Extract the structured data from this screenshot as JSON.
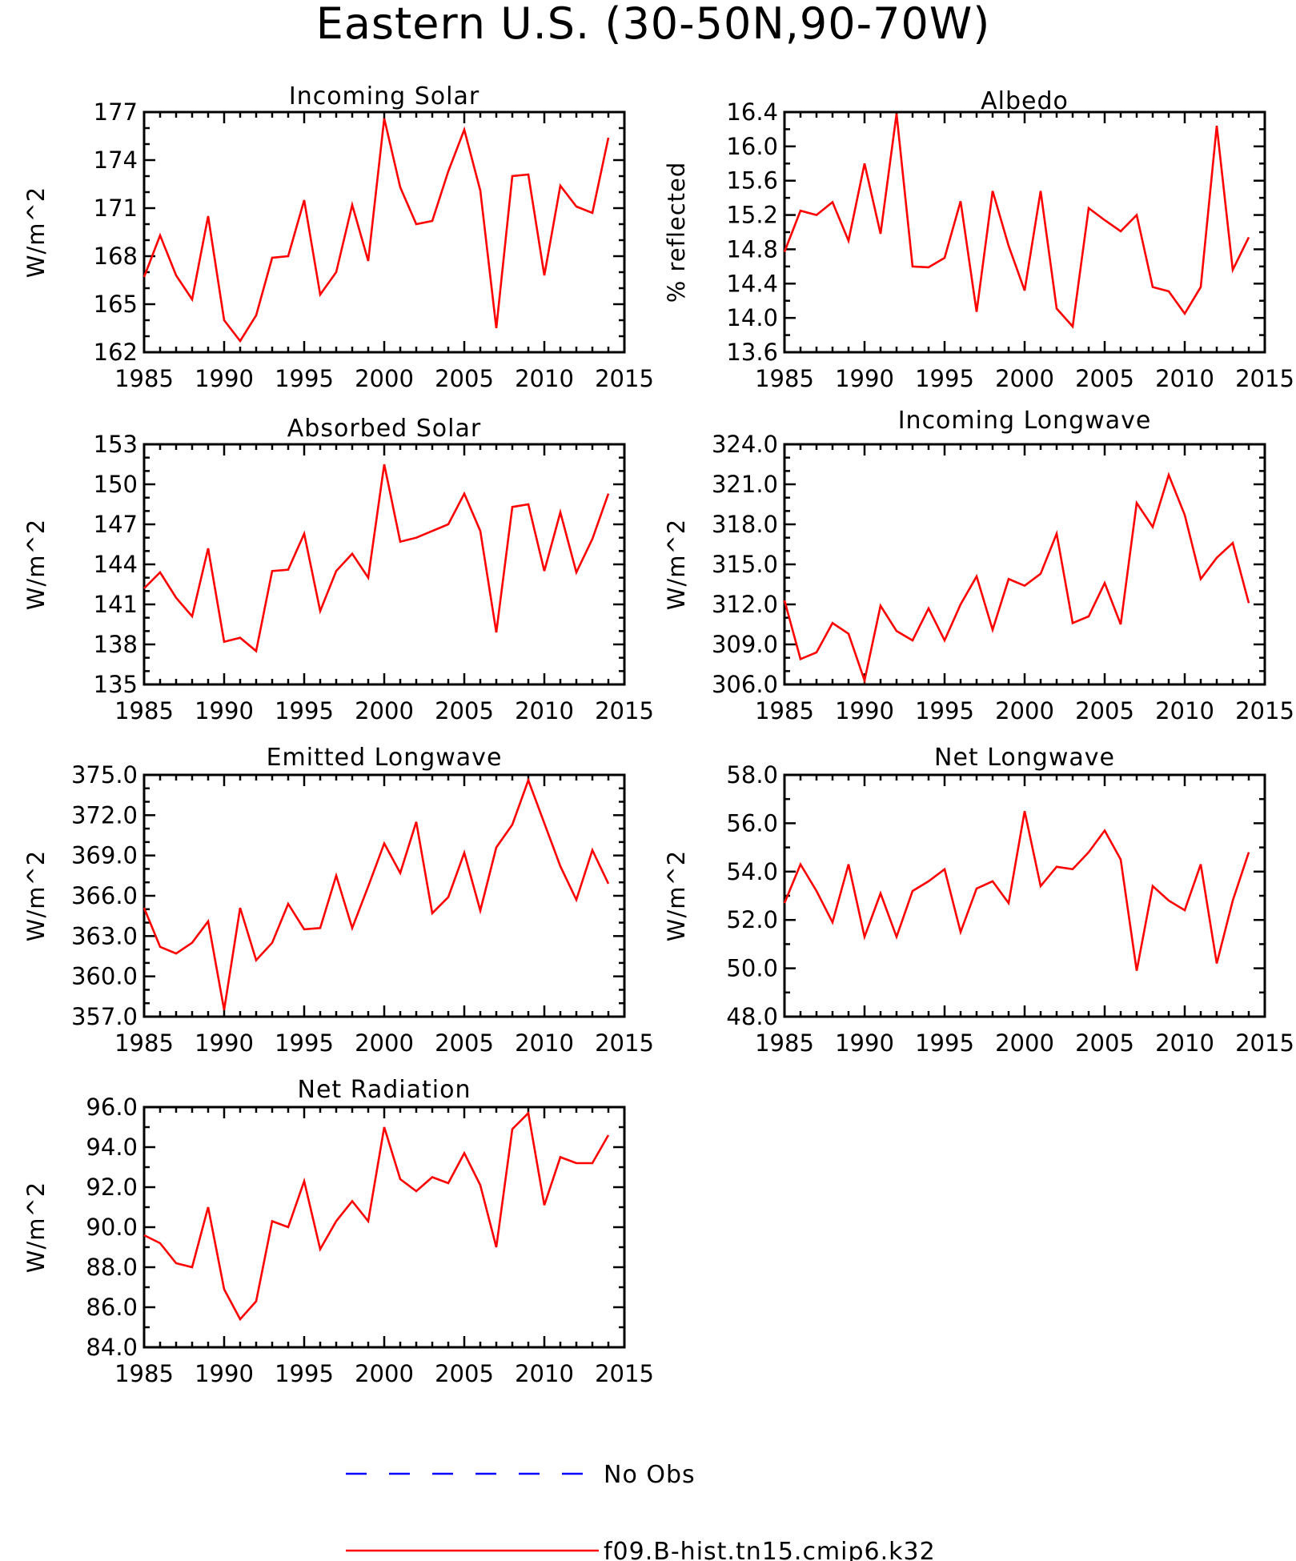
{
  "title": "Eastern U.S. (30-50N,90-70W)",
  "legend": [
    {
      "label": "No Obs",
      "color": "#0000ff",
      "style": "dashed"
    },
    {
      "label": "f09.B-hist.tn15.cmip6.k32",
      "color": "#ff0000",
      "style": "solid"
    }
  ],
  "chart_data": [
    {
      "type": "line",
      "title": "Incoming Solar",
      "ylabel": "W/m^2",
      "xlim": [
        1985,
        2015
      ],
      "ylim": [
        162,
        177
      ],
      "xticks": [
        1985,
        1990,
        1995,
        2000,
        2005,
        2010,
        2015
      ],
      "yticks": [
        "162",
        "165",
        "168",
        "171",
        "174",
        "177"
      ],
      "x": [
        1985,
        1986,
        1987,
        1988,
        1989,
        1990,
        1991,
        1992,
        1993,
        1994,
        1995,
        1996,
        1997,
        1998,
        1999,
        2000,
        2001,
        2002,
        2003,
        2004,
        2005,
        2006,
        2007,
        2008,
        2009,
        2010,
        2011,
        2012,
        2013,
        2014
      ],
      "series": [
        {
          "color": "#ff0000",
          "values": [
            166.7,
            169.3,
            166.8,
            165.3,
            170.5,
            164.0,
            162.7,
            164.3,
            167.9,
            168.0,
            171.5,
            165.6,
            167.0,
            171.2,
            167.7,
            176.6,
            172.3,
            170.0,
            170.2,
            173.3,
            175.9,
            172.1,
            163.5,
            173.0,
            173.1,
            166.8,
            172.4,
            171.1,
            170.7,
            175.4
          ]
        }
      ]
    },
    {
      "type": "line",
      "title": "Albedo",
      "ylabel": "% reflected",
      "xlim": [
        1985,
        2015
      ],
      "ylim": [
        13.6,
        16.4
      ],
      "xticks": [
        1985,
        1990,
        1995,
        2000,
        2005,
        2010,
        2015
      ],
      "yticks": [
        "13.6",
        "14.0",
        "14.4",
        "14.8",
        "15.2",
        "15.6",
        "16.0",
        "16.4"
      ],
      "x": [
        1985,
        1986,
        1987,
        1988,
        1989,
        1990,
        1991,
        1992,
        1993,
        1994,
        1995,
        1996,
        1997,
        1998,
        1999,
        2000,
        2001,
        2002,
        2003,
        2004,
        2005,
        2006,
        2007,
        2008,
        2009,
        2010,
        2011,
        2012,
        2013,
        2014
      ],
      "series": [
        {
          "color": "#ff0000",
          "values": [
            14.77,
            15.25,
            15.2,
            15.35,
            14.9,
            15.8,
            14.98,
            16.38,
            14.6,
            14.59,
            14.7,
            15.36,
            14.07,
            15.48,
            14.84,
            14.32,
            15.48,
            14.11,
            13.9,
            15.28,
            15.14,
            15.01,
            15.2,
            14.36,
            14.31,
            14.05,
            14.36,
            16.24,
            14.56,
            14.94
          ]
        }
      ]
    },
    {
      "type": "line",
      "title": "Absorbed Solar",
      "ylabel": "W/m^2",
      "xlim": [
        1985,
        2015
      ],
      "ylim": [
        135,
        153
      ],
      "xticks": [
        1985,
        1990,
        1995,
        2000,
        2005,
        2010,
        2015
      ],
      "yticks": [
        "135",
        "138",
        "141",
        "144",
        "147",
        "150",
        "153"
      ],
      "x": [
        1985,
        1986,
        1987,
        1988,
        1989,
        1990,
        1991,
        1992,
        1993,
        1994,
        1995,
        1996,
        1997,
        1998,
        1999,
        2000,
        2001,
        2002,
        2003,
        2004,
        2005,
        2006,
        2007,
        2008,
        2009,
        2010,
        2011,
        2012,
        2013,
        2014
      ],
      "series": [
        {
          "color": "#ff0000",
          "values": [
            142.2,
            143.4,
            141.5,
            140.1,
            145.2,
            138.2,
            138.5,
            137.5,
            143.5,
            143.6,
            146.3,
            140.5,
            143.5,
            144.8,
            143.0,
            151.5,
            145.7,
            146.0,
            146.5,
            147.0,
            149.3,
            146.5,
            138.9,
            148.3,
            148.5,
            143.5,
            147.9,
            143.4,
            145.9,
            149.3
          ]
        }
      ]
    },
    {
      "type": "line",
      "title": "Incoming Longwave",
      "ylabel": "W/m^2",
      "xlim": [
        1985,
        2015
      ],
      "ylim": [
        306,
        324
      ],
      "xticks": [
        1985,
        1990,
        1995,
        2000,
        2005,
        2010,
        2015
      ],
      "yticks": [
        "306.0",
        "309.0",
        "312.0",
        "315.0",
        "318.0",
        "321.0",
        "324.0"
      ],
      "x": [
        1985,
        1986,
        1987,
        1988,
        1989,
        1990,
        1991,
        1992,
        1993,
        1994,
        1995,
        1996,
        1997,
        1998,
        1999,
        2000,
        2001,
        2002,
        2003,
        2004,
        2005,
        2006,
        2007,
        2008,
        2009,
        2010,
        2011,
        2012,
        2013,
        2014
      ],
      "series": [
        {
          "color": "#ff0000",
          "values": [
            312.3,
            307.9,
            308.4,
            310.6,
            309.8,
            306.3,
            311.9,
            310.0,
            309.3,
            311.7,
            309.3,
            312.0,
            314.1,
            310.1,
            313.9,
            313.4,
            314.3,
            317.3,
            310.6,
            311.1,
            313.6,
            310.5,
            319.6,
            317.8,
            321.7,
            318.7,
            313.9,
            315.5,
            316.6,
            312.1
          ]
        }
      ]
    },
    {
      "type": "line",
      "title": "Emitted Longwave",
      "ylabel": "W/m^2",
      "xlim": [
        1985,
        2015
      ],
      "ylim": [
        357,
        375
      ],
      "xticks": [
        1985,
        1990,
        1995,
        2000,
        2005,
        2010,
        2015
      ],
      "yticks": [
        "357.0",
        "360.0",
        "363.0",
        "366.0",
        "369.0",
        "372.0",
        "375.0"
      ],
      "x": [
        1985,
        1986,
        1987,
        1988,
        1989,
        1990,
        1991,
        1992,
        1993,
        1994,
        1995,
        1996,
        1997,
        1998,
        1999,
        2000,
        2001,
        2002,
        2003,
        2004,
        2005,
        2006,
        2007,
        2008,
        2009,
        2010,
        2011,
        2012,
        2013,
        2014
      ],
      "series": [
        {
          "color": "#ff0000",
          "values": [
            365.1,
            362.2,
            361.7,
            362.5,
            364.1,
            357.5,
            365.1,
            361.2,
            362.5,
            365.4,
            363.5,
            363.6,
            367.5,
            363.6,
            366.7,
            369.9,
            367.7,
            371.5,
            364.7,
            365.9,
            369.2,
            364.9,
            369.6,
            371.3,
            374.6,
            371.4,
            368.2,
            365.7,
            369.4,
            366.9
          ]
        }
      ]
    },
    {
      "type": "line",
      "title": "Net Longwave",
      "ylabel": "W/m^2",
      "xlim": [
        1985,
        2015
      ],
      "ylim": [
        48,
        58
      ],
      "xticks": [
        1985,
        1990,
        1995,
        2000,
        2005,
        2010,
        2015
      ],
      "yticks": [
        "48.0",
        "50.0",
        "52.0",
        "54.0",
        "56.0",
        "58.0"
      ],
      "x": [
        1985,
        1986,
        1987,
        1988,
        1989,
        1990,
        1991,
        1992,
        1993,
        1994,
        1995,
        1996,
        1997,
        1998,
        1999,
        2000,
        2001,
        2002,
        2003,
        2004,
        2005,
        2006,
        2007,
        2008,
        2009,
        2010,
        2011,
        2012,
        2013,
        2014
      ],
      "series": [
        {
          "color": "#ff0000",
          "values": [
            52.7,
            54.3,
            53.2,
            51.9,
            54.3,
            51.3,
            53.1,
            51.3,
            53.2,
            53.6,
            54.1,
            51.5,
            53.3,
            53.6,
            52.7,
            56.5,
            53.4,
            54.2,
            54.1,
            54.8,
            55.7,
            54.5,
            49.9,
            53.4,
            52.8,
            52.4,
            54.3,
            50.2,
            52.8,
            54.8
          ]
        }
      ]
    },
    {
      "type": "line",
      "title": "Net Radiation",
      "ylabel": "W/m^2",
      "xlim": [
        1985,
        2015
      ],
      "ylim": [
        84,
        96
      ],
      "xticks": [
        1985,
        1990,
        1995,
        2000,
        2005,
        2010,
        2015
      ],
      "yticks": [
        "84.0",
        "86.0",
        "88.0",
        "90.0",
        "92.0",
        "94.0",
        "96.0"
      ],
      "x": [
        1985,
        1986,
        1987,
        1988,
        1989,
        1990,
        1991,
        1992,
        1993,
        1994,
        1995,
        1996,
        1997,
        1998,
        1999,
        2000,
        2001,
        2002,
        2003,
        2004,
        2005,
        2006,
        2007,
        2008,
        2009,
        2010,
        2011,
        2012,
        2013,
        2014
      ],
      "series": [
        {
          "color": "#ff0000",
          "values": [
            89.6,
            89.2,
            88.2,
            88.0,
            91.0,
            86.9,
            85.4,
            86.3,
            90.3,
            90.0,
            92.3,
            88.9,
            90.3,
            91.3,
            90.3,
            95.0,
            92.4,
            91.8,
            92.5,
            92.2,
            93.7,
            92.1,
            89.0,
            94.9,
            95.7,
            91.1,
            93.5,
            93.2,
            93.2,
            94.6
          ]
        }
      ]
    }
  ]
}
